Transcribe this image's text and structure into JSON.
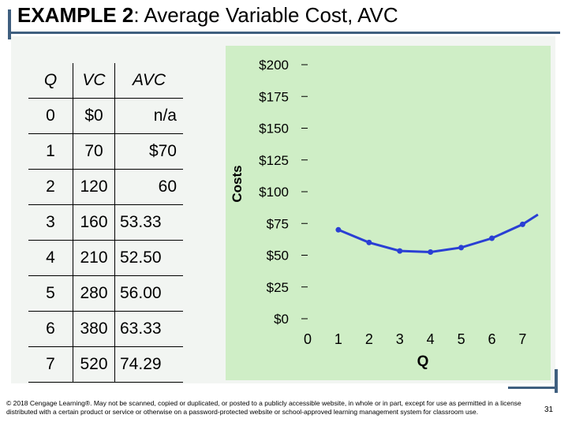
{
  "slide": {
    "title_prefix": "EXAMPLE 2",
    "title_suffix": ":  Average Variable Cost, AVC",
    "copyright": "© 2018 Cengage Learning®. May not be scanned, copied or duplicated, or posted to a publicly accessible website, in whole or in part, except for use as permitted in a license distributed with a certain product or service or otherwise on a password-protected website or school-approved learning management system for classroom use.",
    "page_number": "31"
  },
  "table": {
    "headers": [
      "Q",
      "VC",
      "AVC"
    ],
    "rows": [
      [
        "0",
        "$0",
        "n/a"
      ],
      [
        "1",
        "70",
        "$70"
      ],
      [
        "2",
        "120",
        "60"
      ],
      [
        "3",
        "160",
        "53.33"
      ],
      [
        "4",
        "210",
        "52.50"
      ],
      [
        "5",
        "280",
        "56.00"
      ],
      [
        "6",
        "380",
        "63.33"
      ],
      [
        "7",
        "520",
        "74.29"
      ]
    ]
  },
  "chart_data": {
    "type": "line",
    "title": "",
    "xlabel": "Q",
    "ylabel": "Costs",
    "x_ticks": [
      "0",
      "1",
      "2",
      "3",
      "4",
      "5",
      "6",
      "7"
    ],
    "y_ticks": [
      "$0",
      "$25",
      "$50",
      "$75",
      "$100",
      "$125",
      "$150",
      "$175",
      "$200"
    ],
    "xlim": [
      0,
      7.4
    ],
    "ylim": [
      0,
      200
    ],
    "grid": false,
    "series": [
      {
        "name": "",
        "color": "#2a3fd4",
        "x": [
          1,
          2,
          3,
          4,
          5,
          6,
          7,
          7.5
        ],
        "y": [
          70,
          60,
          53.33,
          52.5,
          56,
          63.33,
          74.29,
          82
        ]
      }
    ],
    "background_color": "#cfeec6"
  }
}
